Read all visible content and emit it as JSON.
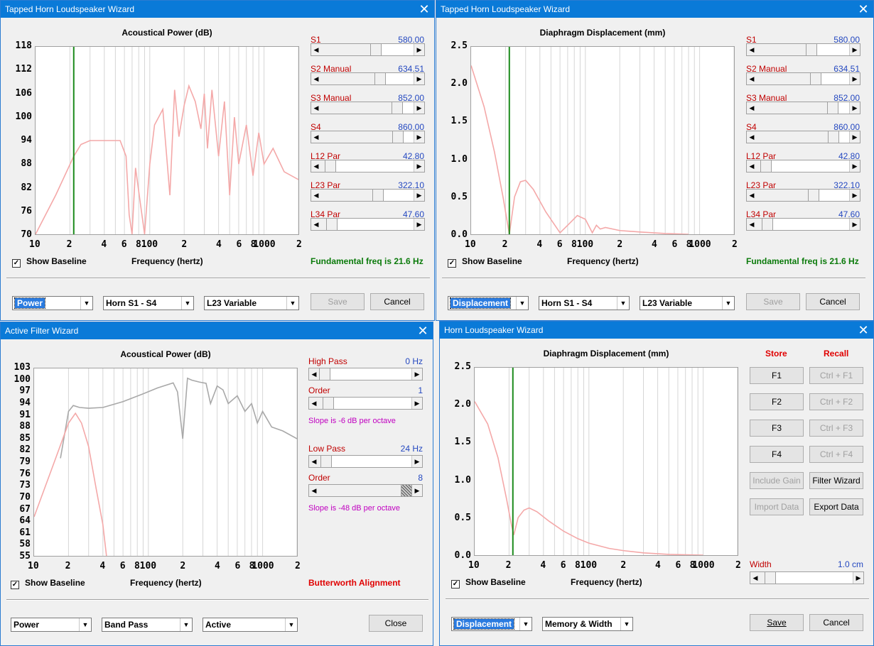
{
  "win1": {
    "title": "Tapped Horn Loudspeaker Wizard",
    "chart_title": "Acoustical Power (dB)",
    "freq_label": "Frequency (hertz)",
    "show_baseline": "Show Baseline",
    "fundamental": "Fundamental freq is 21.6 Hz",
    "yticks": [
      "118",
      "112",
      "106",
      "100",
      "94",
      "88",
      "82",
      "76",
      "70"
    ],
    "xticks": [
      "10",
      "2",
      "4",
      "6",
      "8",
      "100",
      "2",
      "4",
      "6",
      "8",
      "1000",
      "2"
    ],
    "sliders": [
      {
        "label": "S1",
        "value": "580.00",
        "pos": 0.6
      },
      {
        "label": "S2  Manual",
        "value": "634.51",
        "pos": 0.65
      },
      {
        "label": "S3  Manual",
        "value": "852.00",
        "pos": 0.86
      },
      {
        "label": "S4",
        "value": "860.00",
        "pos": 0.87
      },
      {
        "label": "L12  Par",
        "value": "42.80",
        "pos": 0.04
      },
      {
        "label": "L23  Par",
        "value": "322.10",
        "pos": 0.63
      },
      {
        "label": "L34  Par",
        "value": "47.60",
        "pos": 0.06
      }
    ],
    "combos": [
      "Power",
      "Horn S1 - S4",
      "L23 Variable"
    ],
    "save": "Save",
    "cancel": "Cancel"
  },
  "win2": {
    "title": "Tapped Horn Loudspeaker Wizard",
    "chart_title": "Diaphragm Displacement (mm)",
    "freq_label": "Frequency (hertz)",
    "show_baseline": "Show Baseline",
    "fundamental": "Fundamental freq is 21.6 Hz",
    "yticks": [
      "2.5",
      "2.0",
      "1.5",
      "1.0",
      "0.5",
      "0.0"
    ],
    "xticks": [
      "10",
      "2",
      "4",
      "6",
      "8",
      "100",
      "2",
      "4",
      "6",
      "8",
      "1000",
      "2"
    ],
    "sliders": [
      {
        "label": "S1",
        "value": "580.00",
        "pos": 0.6
      },
      {
        "label": "S2  Manual",
        "value": "634.51",
        "pos": 0.65
      },
      {
        "label": "S3  Manual",
        "value": "852.00",
        "pos": 0.86
      },
      {
        "label": "S4",
        "value": "860.00",
        "pos": 0.87
      },
      {
        "label": "L12  Par",
        "value": "42.80",
        "pos": 0.04
      },
      {
        "label": "L23  Par",
        "value": "322.10",
        "pos": 0.63
      },
      {
        "label": "L34  Par",
        "value": "47.60",
        "pos": 0.06
      }
    ],
    "combos": [
      "Displacement",
      "Horn S1 - S4",
      "L23 Variable"
    ],
    "save": "Save",
    "cancel": "Cancel"
  },
  "win3": {
    "title": "Active Filter Wizard",
    "chart_title": "Acoustical Power (dB)",
    "freq_label": "Frequency (hertz)",
    "show_baseline": "Show Baseline",
    "alignment": "Butterworth Alignment",
    "yticks": [
      "103",
      "100",
      "97",
      "94",
      "91",
      "88",
      "85",
      "82",
      "79",
      "76",
      "73",
      "70",
      "67",
      "64",
      "61",
      "58",
      "55"
    ],
    "xticks": [
      "10",
      "2",
      "4",
      "6",
      "8",
      "100",
      "2",
      "4",
      "6",
      "8",
      "1000",
      "2"
    ],
    "high_pass": {
      "label": "High Pass",
      "value": "0 Hz",
      "pos": 0.0
    },
    "hp_order": {
      "label": "Order",
      "value": "1",
      "pos": 0.04
    },
    "hp_slope": "Slope is -6 dB per octave",
    "low_pass": {
      "label": "Low Pass",
      "value": "24 Hz",
      "pos": 0.02
    },
    "lp_order": {
      "label": "Order",
      "value": "8",
      "pos": 1.0
    },
    "lp_slope": "Slope is -48 dB per octave",
    "combos": [
      "Power",
      "Band Pass",
      "Active"
    ],
    "close": "Close"
  },
  "win4": {
    "title": "Horn Loudspeaker Wizard",
    "chart_title": "Diaphragm Displacement (mm)",
    "freq_label": "Frequency (hertz)",
    "show_baseline": "Show Baseline",
    "yticks": [
      "2.5",
      "2.0",
      "1.5",
      "1.0",
      "0.5",
      "0.0"
    ],
    "xticks": [
      "10",
      "2",
      "4",
      "6",
      "8",
      "100",
      "2",
      "4",
      "6",
      "8",
      "1000",
      "2"
    ],
    "store": "Store",
    "recall": "Recall",
    "store_buttons": [
      "F1",
      "F2",
      "F3",
      "F4",
      "Include Gain",
      "Import Data"
    ],
    "recall_buttons": [
      "Ctrl + F1",
      "Ctrl + F2",
      "Ctrl + F3",
      "Ctrl + F4",
      "Filter Wizard",
      "Export Data"
    ],
    "width": {
      "label": "Width",
      "value": "1.0 cm",
      "pos": 0.05
    },
    "combos": [
      "Displacement",
      "Memory & Width"
    ],
    "save": "Save",
    "cancel": "Cancel"
  },
  "chart_data": [
    {
      "type": "line",
      "title": "Acoustical Power (dB)",
      "xlabel": "Frequency (hertz)",
      "ylabel": "",
      "xscale": "log",
      "xlim": [
        10,
        2000
      ],
      "ylim": [
        70,
        118
      ],
      "marker_freq": 21.6,
      "series": [
        {
          "x": [
            10,
            15,
            21.6,
            25,
            30,
            40,
            55,
            62,
            66,
            70,
            75,
            90,
            100,
            110,
            130,
            150,
            165,
            180,
            200,
            220,
            250,
            280,
            300,
            320,
            350,
            400,
            450,
            500,
            550,
            600,
            700,
            800,
            900,
            1000,
            1200,
            1500,
            2000
          ],
          "y": [
            70,
            80,
            90,
            93,
            94,
            94,
            94,
            90,
            75,
            70,
            87,
            70,
            88,
            98,
            102,
            80,
            107,
            95,
            103,
            108,
            104,
            97,
            106,
            92,
            107,
            90,
            104,
            80,
            100,
            88,
            98,
            85,
            96,
            88,
            92,
            86,
            84
          ]
        }
      ]
    },
    {
      "type": "line",
      "title": "Diaphragm Displacement (mm)",
      "xlabel": "Frequency (hertz)",
      "ylabel": "",
      "xscale": "log",
      "xlim": [
        10,
        2000
      ],
      "ylim": [
        0,
        2.5
      ],
      "marker_freq": 21.6,
      "series": [
        {
          "x": [
            10,
            13,
            16,
            19,
            21.6,
            24,
            27,
            30,
            35,
            45,
            60,
            70,
            85,
            100,
            115,
            125,
            135,
            150,
            200,
            300,
            500,
            800
          ],
          "y": [
            2.25,
            1.7,
            1.1,
            0.5,
            0.0,
            0.5,
            0.7,
            0.72,
            0.6,
            0.3,
            0.02,
            0.12,
            0.25,
            0.2,
            0.02,
            0.12,
            0.07,
            0.09,
            0.05,
            0.03,
            0.01,
            0.0
          ]
        }
      ]
    },
    {
      "type": "line",
      "title": "Acoustical Power (dB)",
      "xlabel": "Frequency (hertz)",
      "ylabel": "",
      "xscale": "log",
      "xlim": [
        10,
        2000
      ],
      "ylim": [
        55,
        103
      ],
      "series": [
        {
          "x": [
            17,
            20,
            22,
            25,
            30,
            40,
            60,
            90,
            120,
            165,
            180,
            200,
            220,
            240,
            280,
            320,
            350,
            400,
            450,
            500,
            600,
            700,
            800,
            900,
            1000,
            1200,
            1500,
            2000
          ],
          "y": [
            80,
            92,
            93.5,
            93,
            92.8,
            93,
            94.5,
            96.5,
            98,
            99.3,
            97,
            85,
            100.5,
            100,
            99.5,
            99.2,
            94,
            98.5,
            97.5,
            94,
            96,
            92,
            94,
            89,
            92,
            88,
            87,
            85
          ]
        },
        {
          "x": [
            10,
            15,
            20,
            23,
            26,
            30,
            35,
            40,
            43
          ],
          "y": [
            65,
            79,
            89,
            91.5,
            89,
            83,
            72,
            63,
            55
          ]
        }
      ]
    },
    {
      "type": "line",
      "title": "Diaphragm Displacement (mm)",
      "xlabel": "Frequency (hertz)",
      "ylabel": "",
      "xscale": "log",
      "xlim": [
        10,
        2000
      ],
      "ylim": [
        0,
        2.5
      ],
      "marker_freq": 21.6,
      "series": [
        {
          "x": [
            10,
            13,
            16,
            19,
            21,
            22,
            24,
            27,
            30,
            35,
            45,
            60,
            80,
            100,
            150,
            200,
            300,
            500,
            1000
          ],
          "y": [
            2.05,
            1.75,
            1.3,
            0.75,
            0.4,
            0.27,
            0.5,
            0.6,
            0.63,
            0.58,
            0.45,
            0.32,
            0.22,
            0.16,
            0.09,
            0.06,
            0.03,
            0.01,
            0.0
          ]
        }
      ]
    }
  ]
}
